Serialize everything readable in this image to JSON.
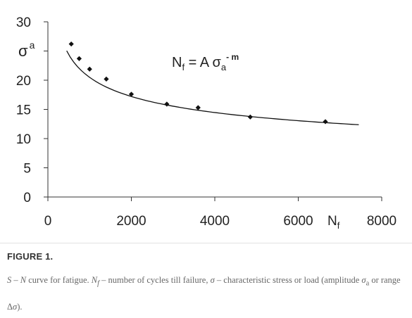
{
  "chart_data": {
    "type": "scatter",
    "title": "",
    "xlabel": "N",
    "xlabel_sub": "f",
    "ylabel": "σ",
    "ylabel_sub": "a",
    "xlim": [
      0,
      8000
    ],
    "ylim": [
      0,
      30
    ],
    "x_ticks": [
      0,
      2000,
      4000,
      6000,
      8000
    ],
    "x_tick_labels": [
      "0",
      "2000",
      "4000",
      "6000",
      "8000"
    ],
    "y_ticks": [
      0,
      5,
      10,
      15,
      20,
      25,
      30
    ],
    "y_tick_labels": [
      "0",
      "5",
      "10",
      "15",
      "20",
      "",
      "30"
    ],
    "grid": false,
    "legend": "none",
    "points": [
      {
        "x": 560,
        "y": 26.2
      },
      {
        "x": 750,
        "y": 23.7
      },
      {
        "x": 1000,
        "y": 21.9
      },
      {
        "x": 1400,
        "y": 20.2
      },
      {
        "x": 2000,
        "y": 17.6
      },
      {
        "x": 2850,
        "y": 15.9
      },
      {
        "x": 3600,
        "y": 15.3
      },
      {
        "x": 4850,
        "y": 13.7
      },
      {
        "x": 6650,
        "y": 12.9
      }
    ],
    "fit_curve": {
      "type": "power",
      "A": 116.0,
      "m": 0.251,
      "x_start": 450,
      "x_end": 7450
    },
    "equation": {
      "lhs": "N",
      "lhs_sub": "f",
      "mid": " = A σ",
      "mid_sub": "a",
      "sup": "- m"
    },
    "colors": {
      "axis": "#333333",
      "marker": "#111111",
      "curve": "#111111"
    }
  },
  "caption": {
    "label": "FIGURE 1.",
    "text": {
      "p1": "S – N",
      "p2": " curve for fatigue. ",
      "p3": "N",
      "p3_sub": "f",
      "p4": " – number of cycles till failure, ",
      "p5": "σ",
      "p6": " – characteristic stress or load (amplitude ",
      "p7": "σ",
      "p7_sub": "a",
      "p8": " or range Δ",
      "p9": "σ",
      "p10": ")."
    }
  }
}
